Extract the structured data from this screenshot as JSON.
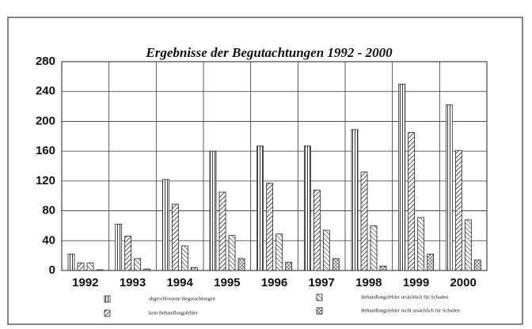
{
  "chart_data": {
    "type": "bar",
    "title": "Ergebnisse der Begutachtungen 1992 - 2000",
    "categories": [
      "1992",
      "1993",
      "1994",
      "1995",
      "1996",
      "1997",
      "1998",
      "1999",
      "2000"
    ],
    "series": [
      {
        "name": "abgeschlossene Begutachtungen",
        "color": "#222222",
        "pattern": "vertical",
        "values": [
          22,
          62,
          122,
          160,
          167,
          167,
          189,
          250,
          222
        ]
      },
      {
        "name": "kein Behandlungsfehler",
        "color": "#222222",
        "pattern": "diagonal-down",
        "values": [
          10,
          46,
          89,
          105,
          117,
          108,
          132,
          185,
          161
        ]
      },
      {
        "name": "Behandlungsfehler ursächlich für Schaden",
        "color": "#222222",
        "pattern": "diagonal-up",
        "values": [
          10,
          16,
          33,
          47,
          49,
          54,
          60,
          71,
          68
        ]
      },
      {
        "name": "Behandlungsfehler nicht ursächlich für Schaden",
        "color": "#222222",
        "pattern": "cross",
        "values": [
          1,
          2,
          4,
          16,
          11,
          16,
          6,
          22,
          14
        ]
      }
    ],
    "ylim": [
      0,
      280
    ],
    "yticks": [
      0,
      40,
      80,
      120,
      160,
      200,
      240,
      280
    ],
    "grid": true
  }
}
